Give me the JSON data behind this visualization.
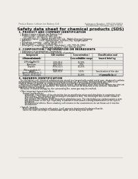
{
  "bg_color": "#f0ede8",
  "title": "Safety data sheet for chemical products (SDS)",
  "header_left": "Product Name: Lithium Ion Battery Cell",
  "header_right_line1": "Substance Number: 999-049-00819",
  "header_right_line2": "Established / Revision: Dec.7.2010",
  "section1_title": "1. PRODUCT AND COMPANY IDENTIFICATION",
  "section1_lines": [
    "  • Product name: Lithium Ion Battery Cell",
    "  • Product code: Cylindrical-type cell",
    "       (SY-18650U, SY-18650L, SY-18650A)",
    "  • Company name:    Sanyo Electric Co., Ltd., Mobile Energy Company",
    "  • Address:            2001, Kamikosaka, Sumoto-City, Hyogo, Japan",
    "  • Telephone number:    +81-799-26-4111",
    "  • Fax number:    +81-799-26-4129",
    "  • Emergency telephone number (Weekday): +81-799-26-3962",
    "                                  (Night and holiday): +81-799-26-4101"
  ],
  "section2_title": "2. COMPOSITION / INFORMATION ON INGREDIENTS",
  "section2_intro": "  • Substance or preparation: Preparation",
  "section2_sub": "  • Information about the chemical nature of product:",
  "table_col0_header": "Component\n(Several name)",
  "table_col1_header": "CAS number",
  "table_col2_header": "Concentration /\nConcentration range",
  "table_col3_header": "Classification and\nhazard labeling",
  "table_rows": [
    [
      "Lithium cobalt oxide\n(LiMnxCoyNizO2)",
      "-",
      "30-65%",
      "-"
    ],
    [
      "Iron",
      "7439-89-6",
      "10-20%",
      "-"
    ],
    [
      "Aluminum",
      "7429-90-5",
      "2-5%",
      "-"
    ],
    [
      "Graphite\n(Meso graphite-1)\n(Artificial graphite-1)",
      "77592-42-5\n77592-44-0",
      "10-25%",
      "-"
    ],
    [
      "Copper",
      "7440-50-8",
      "5-15%",
      "Sensitization of the skin\ngroup No.2"
    ],
    [
      "Organic electrolyte",
      "-",
      "10-20%",
      "Inflammable liquid"
    ]
  ],
  "section3_title": "3. HAZARDS IDENTIFICATION",
  "section3_lines": [
    "   For the battery cell, chemical substances are stored in a hermetically sealed metal case, designed to withstand",
    "temperatures and pressures encountered during normal use. As a result, during normal use, there is no",
    "physical danger of ignition or explosion and there is no danger of hazardous materials leakage.",
    "   However, if exposed to a fire, added mechanical shocks, decomposed, when electrolyte stresses my case,use,",
    "the gas release vent can be operated. The battery cell case will be breached at the extreme. Hazardous",
    "materials may be released.",
    "   Moreover, if heated strongly by the surrounding fire, some gas may be emitted.",
    "",
    "  • Most important hazard and effects:",
    "       Human health effects:",
    "          Inhalation: The release of the electrolyte has an anesthesia action and stimulates in respiratory tract.",
    "          Skin contact: The release of the electrolyte stimulates a skin. The electrolyte skin contact causes a",
    "          sore and stimulation on the skin.",
    "          Eye contact: The release of the electrolyte stimulates eyes. The electrolyte eye contact causes a sore",
    "          and stimulation on the eye. Especially, a substance that causes a strong inflammation of the eyes is",
    "          contained.",
    "          Environmental effects: Since a battery cell remains in the environment, do not throw out it into the",
    "          environment.",
    "",
    "  • Specific hazards:",
    "       If the electrolyte contacts with water, it will generate detrimental hydrogen fluoride.",
    "       Since the neat electrolyte is inflammable liquid, do not bring close to fire."
  ]
}
